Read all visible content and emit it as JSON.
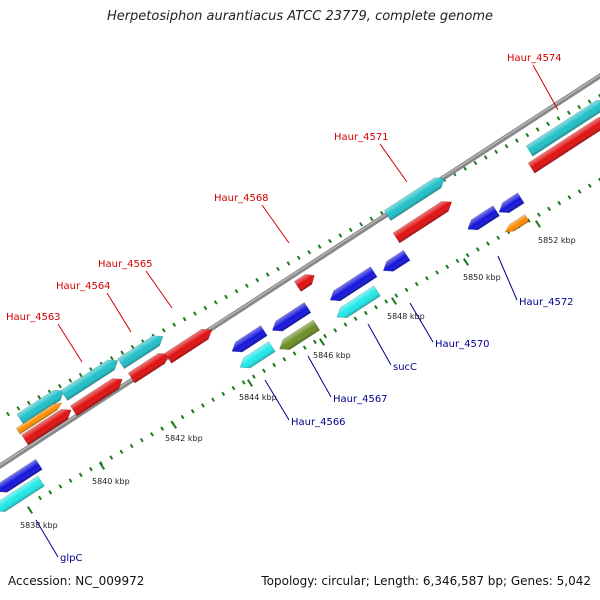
{
  "title": "Herpetosiphon aurantiacus ATCC 23779, complete genome",
  "footer": {
    "accession": "Accession: NC_009972",
    "summary": "Topology: circular; Length: 6,346,587 bp; Genes: 5,042"
  },
  "colors": {
    "forward_gene": "#e01010",
    "forward_cds": "#20c0c8",
    "forward_other": "#ff8c00",
    "reverse_gene": "#1414dc",
    "reverse_cds": "#20e8e8",
    "reverse_other": "#6b8e23",
    "forward_label": "#d40000",
    "reverse_label": "#00008b",
    "tick": "#1e7a1e",
    "backbone": "#888888"
  },
  "ticks": [
    "5838 kbp",
    "5840 kbp",
    "5842 kbp",
    "5844 kbp",
    "5846 kbp",
    "5848 kbp",
    "5850 kbp",
    "5852 kbp"
  ],
  "forward_labels": [
    "Haur_4563",
    "Haur_4564",
    "Haur_4565",
    "Haur_4568",
    "Haur_4571",
    "Haur_4574"
  ],
  "reverse_labels": [
    "glpC",
    "Haur_4566",
    "Haur_4567",
    "sucC",
    "Haur_4570",
    "Haur_4572"
  ]
}
